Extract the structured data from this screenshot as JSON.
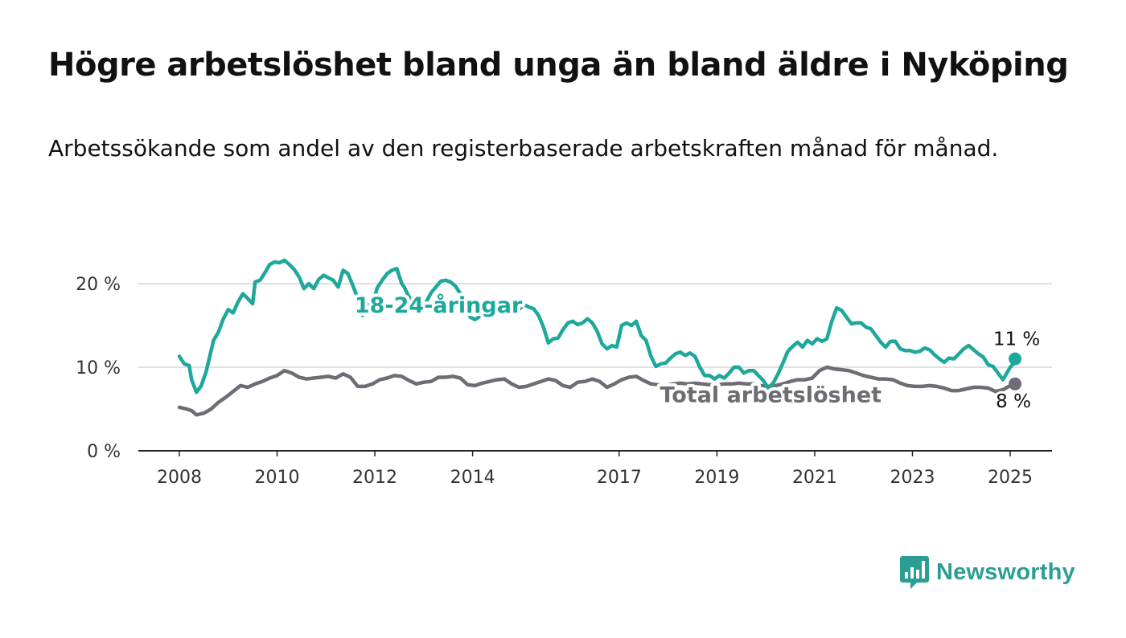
{
  "title": "Högre arbetslöshet bland unga än bland äldre i Nyköping",
  "subtitle": "Arbetssökande som andel av den registerbaserade arbetskraften månad för månad.",
  "brand": {
    "name": "Newsworthy",
    "color": "#2b9e94"
  },
  "chart_data": {
    "type": "line",
    "title": "Högre arbetslöshet bland unga än bland äldre i Nyköping",
    "subtitle": "Arbetssökande som andel av den registerbaserade arbetskraften månad för månad.",
    "xlim": [
      2008,
      2025.1
    ],
    "ylim": [
      0,
      24
    ],
    "grid": true,
    "y_ticks": [
      {
        "value": 0,
        "label": "0 %"
      },
      {
        "value": 10,
        "label": "10 %"
      },
      {
        "value": 20,
        "label": "20 %"
      }
    ],
    "x_ticks": [
      {
        "value": 2008,
        "label": "2008"
      },
      {
        "value": 2010,
        "label": "2010"
      },
      {
        "value": 2012,
        "label": "2012"
      },
      {
        "value": 2014,
        "label": "2014"
      },
      {
        "value": 2017,
        "label": "2017"
      },
      {
        "value": 2019,
        "label": "2019"
      },
      {
        "value": 2021,
        "label": "2021"
      },
      {
        "value": 2023,
        "label": "2023"
      },
      {
        "value": 2025,
        "label": "2025"
      }
    ],
    "series": [
      {
        "name": "18-24-åringar",
        "color": "#1ea89b",
        "end_label": "11 %",
        "points": [
          [
            2008.0,
            11.3
          ],
          [
            2008.1,
            10.4
          ],
          [
            2008.2,
            10.2
          ],
          [
            2008.25,
            8.5
          ],
          [
            2008.35,
            7.0
          ],
          [
            2008.45,
            7.8
          ],
          [
            2008.55,
            9.5
          ],
          [
            2008.7,
            13.2
          ],
          [
            2008.8,
            14.2
          ],
          [
            2008.9,
            15.8
          ],
          [
            2009.0,
            16.9
          ],
          [
            2009.1,
            16.5
          ],
          [
            2009.2,
            17.8
          ],
          [
            2009.3,
            18.8
          ],
          [
            2009.4,
            18.2
          ],
          [
            2009.5,
            17.6
          ],
          [
            2009.55,
            20.2
          ],
          [
            2009.65,
            20.4
          ],
          [
            2009.75,
            21.3
          ],
          [
            2009.85,
            22.3
          ],
          [
            2009.95,
            22.6
          ],
          [
            2010.05,
            22.5
          ],
          [
            2010.15,
            22.8
          ],
          [
            2010.25,
            22.3
          ],
          [
            2010.35,
            21.7
          ],
          [
            2010.45,
            20.8
          ],
          [
            2010.55,
            19.4
          ],
          [
            2010.65,
            20.0
          ],
          [
            2010.75,
            19.4
          ],
          [
            2010.85,
            20.5
          ],
          [
            2010.95,
            21.0
          ],
          [
            2011.05,
            20.7
          ],
          [
            2011.15,
            20.4
          ],
          [
            2011.25,
            19.6
          ],
          [
            2011.35,
            21.6
          ],
          [
            2011.45,
            21.2
          ],
          [
            2011.55,
            19.8
          ],
          [
            2011.65,
            18.2
          ],
          [
            2011.75,
            16.2
          ],
          [
            2011.85,
            17.5
          ],
          [
            2011.95,
            17.5
          ],
          [
            2012.05,
            19.5
          ],
          [
            2012.15,
            20.4
          ],
          [
            2012.25,
            21.2
          ],
          [
            2012.35,
            21.6
          ],
          [
            2012.45,
            21.8
          ],
          [
            2012.55,
            20.0
          ],
          [
            2012.6,
            19.6
          ],
          [
            2012.75,
            17.8
          ],
          [
            2012.85,
            16.8
          ],
          [
            2012.95,
            17.1
          ],
          [
            2013.05,
            17.8
          ],
          [
            2013.15,
            18.9
          ],
          [
            2013.25,
            19.6
          ],
          [
            2013.35,
            20.3
          ],
          [
            2013.45,
            20.4
          ],
          [
            2013.55,
            20.2
          ],
          [
            2013.65,
            19.7
          ],
          [
            2013.75,
            18.8
          ],
          [
            2013.85,
            17.5
          ],
          [
            2013.95,
            16.0
          ],
          [
            2014.05,
            15.7
          ],
          [
            2014.15,
            16.1
          ],
          [
            2014.25,
            17.0
          ],
          [
            2014.35,
            17.8
          ],
          [
            2014.45,
            17.4
          ],
          [
            2014.6,
            16.8
          ],
          [
            2014.75,
            16.4
          ],
          [
            2014.9,
            16.6
          ],
          [
            2015.05,
            17.5
          ],
          [
            2015.15,
            17.2
          ],
          [
            2015.25,
            17.0
          ],
          [
            2015.35,
            16.2
          ],
          [
            2015.45,
            14.8
          ],
          [
            2015.55,
            12.9
          ],
          [
            2015.65,
            13.4
          ],
          [
            2015.75,
            13.5
          ],
          [
            2015.85,
            14.5
          ],
          [
            2015.95,
            15.3
          ],
          [
            2016.05,
            15.5
          ],
          [
            2016.15,
            15.1
          ],
          [
            2016.25,
            15.3
          ],
          [
            2016.35,
            15.8
          ],
          [
            2016.45,
            15.3
          ],
          [
            2016.55,
            14.3
          ],
          [
            2016.65,
            12.8
          ],
          [
            2016.75,
            12.2
          ],
          [
            2016.85,
            12.6
          ],
          [
            2016.95,
            12.4
          ],
          [
            2017.05,
            15.0
          ],
          [
            2017.15,
            15.3
          ],
          [
            2017.25,
            15.0
          ],
          [
            2017.35,
            15.5
          ],
          [
            2017.45,
            13.8
          ],
          [
            2017.55,
            13.2
          ],
          [
            2017.65,
            11.3
          ],
          [
            2017.75,
            10.1
          ],
          [
            2017.85,
            10.4
          ],
          [
            2017.95,
            10.5
          ],
          [
            2018.05,
            11.1
          ],
          [
            2018.15,
            11.6
          ],
          [
            2018.25,
            11.8
          ],
          [
            2018.35,
            11.4
          ],
          [
            2018.45,
            11.7
          ],
          [
            2018.55,
            11.3
          ],
          [
            2018.65,
            10.0
          ],
          [
            2018.75,
            9.0
          ],
          [
            2018.85,
            9.0
          ],
          [
            2018.95,
            8.6
          ],
          [
            2019.05,
            9.0
          ],
          [
            2019.15,
            8.7
          ],
          [
            2019.25,
            9.3
          ],
          [
            2019.35,
            10.0
          ],
          [
            2019.45,
            10.0
          ],
          [
            2019.55,
            9.3
          ],
          [
            2019.65,
            9.6
          ],
          [
            2019.75,
            9.6
          ],
          [
            2019.85,
            9.0
          ],
          [
            2019.95,
            8.4
          ],
          [
            2020.05,
            7.5
          ],
          [
            2020.15,
            8.1
          ],
          [
            2020.25,
            9.2
          ],
          [
            2020.35,
            10.5
          ],
          [
            2020.45,
            11.9
          ],
          [
            2020.55,
            12.5
          ],
          [
            2020.65,
            13.0
          ],
          [
            2020.75,
            12.4
          ],
          [
            2020.85,
            13.2
          ],
          [
            2020.95,
            12.8
          ],
          [
            2021.05,
            13.4
          ],
          [
            2021.15,
            13.1
          ],
          [
            2021.25,
            13.4
          ],
          [
            2021.35,
            15.5
          ],
          [
            2021.45,
            17.1
          ],
          [
            2021.55,
            16.8
          ],
          [
            2021.65,
            16.0
          ],
          [
            2021.75,
            15.2
          ],
          [
            2021.85,
            15.3
          ],
          [
            2021.95,
            15.3
          ],
          [
            2022.05,
            14.8
          ],
          [
            2022.15,
            14.6
          ],
          [
            2022.25,
            13.8
          ],
          [
            2022.35,
            13.0
          ],
          [
            2022.45,
            12.4
          ],
          [
            2022.55,
            13.1
          ],
          [
            2022.65,
            13.1
          ],
          [
            2022.75,
            12.2
          ],
          [
            2022.85,
            12.0
          ],
          [
            2022.95,
            12.0
          ],
          [
            2023.05,
            11.8
          ],
          [
            2023.15,
            11.9
          ],
          [
            2023.25,
            12.3
          ],
          [
            2023.35,
            12.1
          ],
          [
            2023.45,
            11.5
          ],
          [
            2023.55,
            11.0
          ],
          [
            2023.65,
            10.6
          ],
          [
            2023.75,
            11.1
          ],
          [
            2023.85,
            11.0
          ],
          [
            2023.95,
            11.6
          ],
          [
            2024.05,
            12.2
          ],
          [
            2024.15,
            12.6
          ],
          [
            2024.25,
            12.1
          ],
          [
            2024.35,
            11.6
          ],
          [
            2024.45,
            11.2
          ],
          [
            2024.55,
            10.3
          ],
          [
            2024.65,
            10.1
          ],
          [
            2024.75,
            9.3
          ],
          [
            2024.85,
            8.5
          ],
          [
            2024.95,
            9.5
          ],
          [
            2025.0,
            10.0
          ],
          [
            2025.05,
            10.3
          ],
          [
            2025.1,
            11.0
          ]
        ]
      },
      {
        "name": "Total arbetslöshet",
        "color": "#6e6c74",
        "end_label": "8 %",
        "points": [
          [
            2008.0,
            5.2
          ],
          [
            2008.15,
            5.0
          ],
          [
            2008.25,
            4.8
          ],
          [
            2008.35,
            4.3
          ],
          [
            2008.5,
            4.5
          ],
          [
            2008.65,
            5.0
          ],
          [
            2008.8,
            5.8
          ],
          [
            2008.95,
            6.4
          ],
          [
            2009.1,
            7.1
          ],
          [
            2009.25,
            7.8
          ],
          [
            2009.4,
            7.6
          ],
          [
            2009.55,
            8.0
          ],
          [
            2009.7,
            8.3
          ],
          [
            2009.85,
            8.7
          ],
          [
            2010.0,
            9.0
          ],
          [
            2010.15,
            9.6
          ],
          [
            2010.3,
            9.3
          ],
          [
            2010.45,
            8.8
          ],
          [
            2010.6,
            8.6
          ],
          [
            2010.75,
            8.7
          ],
          [
            2010.9,
            8.8
          ],
          [
            2011.05,
            8.9
          ],
          [
            2011.2,
            8.7
          ],
          [
            2011.35,
            9.2
          ],
          [
            2011.5,
            8.8
          ],
          [
            2011.65,
            7.7
          ],
          [
            2011.8,
            7.7
          ],
          [
            2011.95,
            8.0
          ],
          [
            2012.1,
            8.5
          ],
          [
            2012.25,
            8.7
          ],
          [
            2012.4,
            9.0
          ],
          [
            2012.55,
            8.9
          ],
          [
            2012.7,
            8.4
          ],
          [
            2012.85,
            8.0
          ],
          [
            2013.0,
            8.2
          ],
          [
            2013.15,
            8.3
          ],
          [
            2013.3,
            8.8
          ],
          [
            2013.45,
            8.8
          ],
          [
            2013.6,
            8.9
          ],
          [
            2013.75,
            8.7
          ],
          [
            2013.9,
            7.9
          ],
          [
            2014.05,
            7.8
          ],
          [
            2014.2,
            8.1
          ],
          [
            2014.35,
            8.3
          ],
          [
            2014.5,
            8.5
          ],
          [
            2014.65,
            8.6
          ],
          [
            2014.8,
            8.0
          ],
          [
            2014.95,
            7.6
          ],
          [
            2015.1,
            7.7
          ],
          [
            2015.25,
            8.0
          ],
          [
            2015.4,
            8.3
          ],
          [
            2015.55,
            8.6
          ],
          [
            2015.7,
            8.4
          ],
          [
            2015.85,
            7.8
          ],
          [
            2016.0,
            7.6
          ],
          [
            2016.15,
            8.2
          ],
          [
            2016.3,
            8.3
          ],
          [
            2016.45,
            8.6
          ],
          [
            2016.6,
            8.3
          ],
          [
            2016.75,
            7.6
          ],
          [
            2016.9,
            8.0
          ],
          [
            2017.05,
            8.5
          ],
          [
            2017.2,
            8.8
          ],
          [
            2017.35,
            8.9
          ],
          [
            2017.5,
            8.4
          ],
          [
            2017.65,
            8.0
          ],
          [
            2017.8,
            7.9
          ],
          [
            2017.95,
            7.8
          ],
          [
            2018.1,
            8.0
          ],
          [
            2018.25,
            8.1
          ],
          [
            2018.4,
            8.0
          ],
          [
            2018.55,
            8.1
          ],
          [
            2018.7,
            8.0
          ],
          [
            2018.85,
            7.9
          ],
          [
            2019.0,
            7.9
          ],
          [
            2019.15,
            8.0
          ],
          [
            2019.3,
            8.0
          ],
          [
            2019.45,
            8.1
          ],
          [
            2019.6,
            8.0
          ],
          [
            2019.75,
            8.0
          ],
          [
            2019.9,
            7.8
          ],
          [
            2020.05,
            7.7
          ],
          [
            2020.2,
            7.8
          ],
          [
            2020.35,
            8.0
          ],
          [
            2020.5,
            8.3
          ],
          [
            2020.65,
            8.5
          ],
          [
            2020.8,
            8.5
          ],
          [
            2020.95,
            8.7
          ],
          [
            2021.1,
            9.6
          ],
          [
            2021.25,
            10.0
          ],
          [
            2021.4,
            9.8
          ],
          [
            2021.55,
            9.7
          ],
          [
            2021.7,
            9.6
          ],
          [
            2021.85,
            9.3
          ],
          [
            2022.0,
            9.0
          ],
          [
            2022.15,
            8.8
          ],
          [
            2022.3,
            8.6
          ],
          [
            2022.45,
            8.6
          ],
          [
            2022.6,
            8.5
          ],
          [
            2022.75,
            8.1
          ],
          [
            2022.9,
            7.8
          ],
          [
            2023.05,
            7.7
          ],
          [
            2023.2,
            7.7
          ],
          [
            2023.35,
            7.8
          ],
          [
            2023.5,
            7.7
          ],
          [
            2023.65,
            7.5
          ],
          [
            2023.8,
            7.2
          ],
          [
            2023.95,
            7.2
          ],
          [
            2024.1,
            7.4
          ],
          [
            2024.25,
            7.6
          ],
          [
            2024.4,
            7.6
          ],
          [
            2024.55,
            7.5
          ],
          [
            2024.7,
            7.1
          ],
          [
            2024.85,
            7.3
          ],
          [
            2025.0,
            7.8
          ],
          [
            2025.1,
            8.0
          ]
        ]
      }
    ],
    "annotations": [
      {
        "text": "18-24-åringar",
        "x": 2013.3,
        "y": 17.4,
        "color": "#1ea89b"
      },
      {
        "text": "Total arbetslöshet",
        "x": 2020.1,
        "y": 6.7,
        "color": "#6e6c74"
      }
    ]
  }
}
